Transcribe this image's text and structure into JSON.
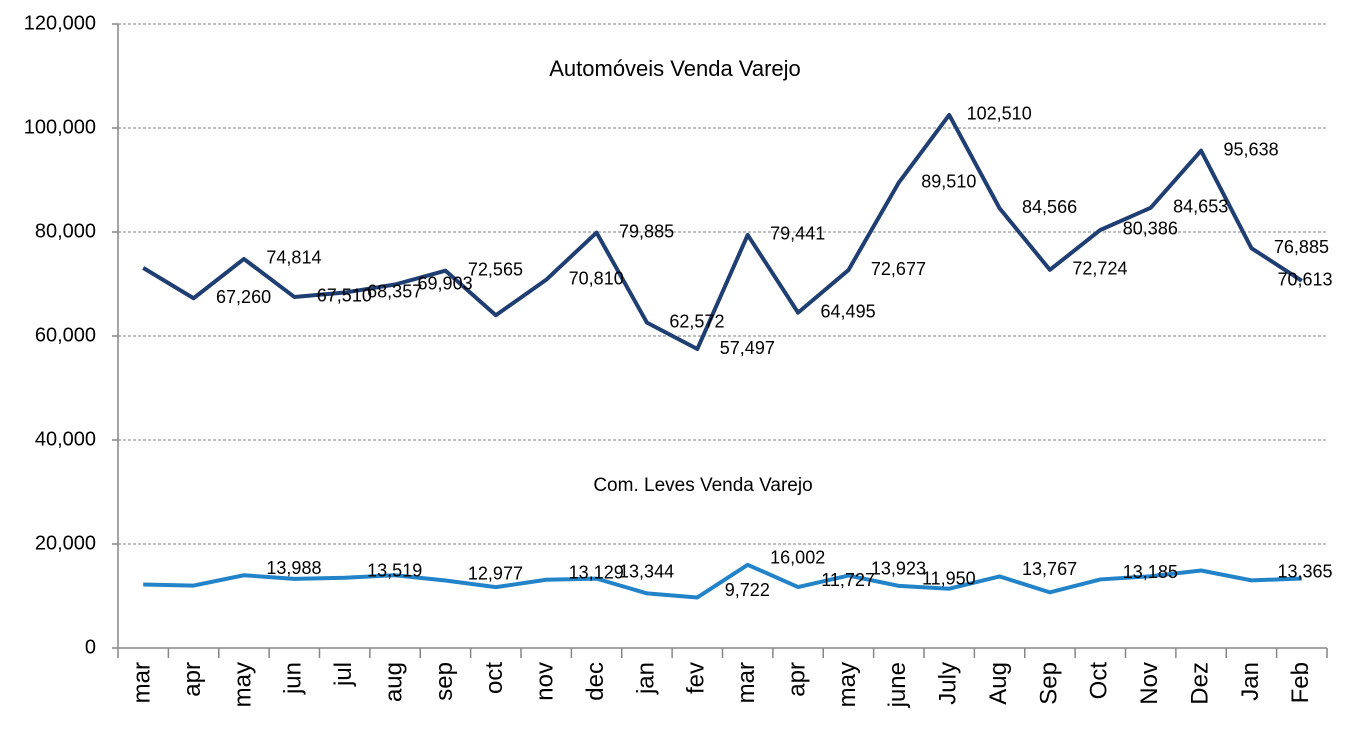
{
  "chart_data": {
    "type": "line",
    "categories": [
      "mar",
      "apr",
      "may",
      "jun",
      "jul",
      "aug",
      "sep",
      "oct",
      "nov",
      "dec",
      "jan",
      "fev",
      "mar",
      "apr",
      "may",
      "june",
      "July",
      "Aug",
      "Sep",
      "Oct",
      "Nov",
      "Dez",
      "Jan",
      "Feb"
    ],
    "series": [
      {
        "name": "Automóveis Venda Varejo",
        "color": "#1f3e72",
        "values": [
          73100,
          67260,
          74814,
          67510,
          68357,
          69903,
          72565,
          64000,
          70810,
          79885,
          62572,
          57497,
          79441,
          64495,
          72677,
          89510,
          102510,
          84566,
          72724,
          80386,
          84653,
          95638,
          76885,
          70613
        ],
        "value_labels": [
          null,
          "67,260",
          "74,814",
          "67,510",
          "68,357",
          "69,903",
          "72,565",
          null,
          "70,810",
          "79,885",
          "62,572",
          "57,497",
          "79,441",
          "64,495",
          "72,677",
          "89,510",
          "102,510",
          "84,566",
          "72,724",
          "80,386",
          "84,653",
          "95,638",
          "76,885",
          "70,613"
        ]
      },
      {
        "name": "Com. Leves Venda Varejo",
        "color": "#2383c9",
        "values": [
          12200,
          12000,
          13988,
          13300,
          13519,
          14000,
          12977,
          11700,
          13129,
          13344,
          10500,
          9722,
          16002,
          11727,
          13923,
          11950,
          11400,
          13767,
          10700,
          13185,
          13800,
          14900,
          13000,
          13365
        ],
        "value_labels": [
          null,
          null,
          "13,988",
          null,
          "13,519",
          null,
          "12,977",
          null,
          "13,129",
          "13,344",
          null,
          "9,722",
          "16,002",
          "11,727",
          "13,923",
          "11,950",
          null,
          "13,767",
          null,
          "13,185",
          null,
          null,
          null,
          "13,365"
        ]
      }
    ],
    "ylim": [
      0,
      120000
    ],
    "yticks": [
      0,
      {
        "value": 20000,
        "label": "20,000"
      },
      {
        "value": 40000,
        "label": "40,000"
      },
      {
        "value": 60000,
        "label": "60,000"
      },
      {
        "value": 80000,
        "label": "80,000"
      },
      {
        "value": 100000,
        "label": "100,000"
      },
      {
        "value": 120000,
        "label": "120,000"
      }
    ],
    "grid": true
  }
}
